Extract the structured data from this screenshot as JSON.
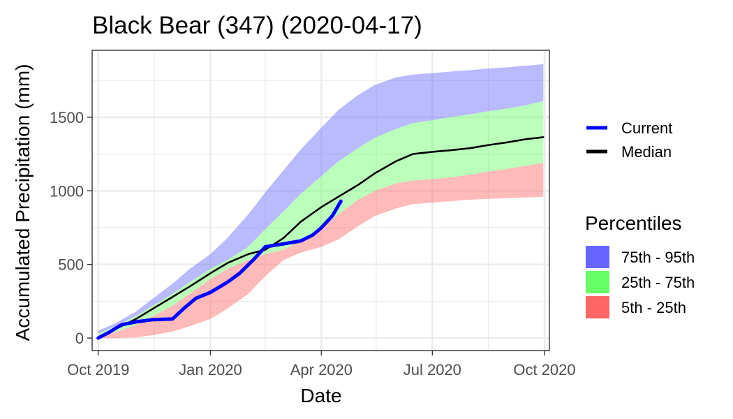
{
  "chart_data": {
    "type": "line",
    "title": "Black Bear (347) (2020-04-17)",
    "xlabel": "Date",
    "ylabel": "Accumulated Precipitation (mm)",
    "xlim": [
      "2019-09-26",
      "2020-10-05"
    ],
    "ylim": [
      -85,
      1955
    ],
    "x_ticks": [
      {
        "date": "2019-10-01",
        "label": "Oct 2019"
      },
      {
        "date": "2020-01-01",
        "label": "Jan 2020"
      },
      {
        "date": "2020-04-01",
        "label": "Apr 2020"
      },
      {
        "date": "2020-07-01",
        "label": "Jul 2020"
      },
      {
        "date": "2020-10-01",
        "label": "Oct 2020"
      }
    ],
    "y_ticks": [
      0,
      500,
      1000,
      1500
    ],
    "grid": true,
    "legend_lines_title": "",
    "legend_bands_title": "Percentiles",
    "legend_placement": "right",
    "colors": {
      "current": "#0000ff",
      "median": "#000000",
      "p75_95": "#6666ff",
      "p25_75": "#66ff66",
      "p5_25": "#ff6666"
    },
    "bands": {
      "dates": [
        "2019-10-01",
        "2019-10-15",
        "2019-11-01",
        "2019-11-15",
        "2019-12-01",
        "2019-12-15",
        "2020-01-01",
        "2020-01-15",
        "2020-02-01",
        "2020-02-15",
        "2020-03-01",
        "2020-03-15",
        "2020-04-01",
        "2020-04-15",
        "2020-05-01",
        "2020-05-15",
        "2020-06-01",
        "2020-06-15",
        "2020-07-01",
        "2020-07-15",
        "2020-08-01",
        "2020-08-15",
        "2020-09-01",
        "2020-09-15",
        "2020-09-30"
      ],
      "p5": [
        0,
        0,
        5,
        20,
        45,
        80,
        130,
        200,
        300,
        420,
        530,
        580,
        620,
        670,
        760,
        830,
        880,
        910,
        920,
        930,
        940,
        945,
        950,
        955,
        960
      ],
      "p25": [
        10,
        40,
        90,
        150,
        220,
        300,
        400,
        470,
        530,
        570,
        600,
        660,
        750,
        840,
        940,
        1000,
        1050,
        1070,
        1080,
        1090,
        1110,
        1130,
        1150,
        1170,
        1190
      ],
      "p75": [
        30,
        80,
        150,
        220,
        300,
        380,
        470,
        530,
        620,
        740,
        860,
        980,
        1100,
        1200,
        1290,
        1360,
        1420,
        1460,
        1480,
        1500,
        1520,
        1540,
        1560,
        1580,
        1610
      ],
      "p95": [
        50,
        100,
        180,
        270,
        370,
        470,
        570,
        680,
        840,
        990,
        1140,
        1280,
        1430,
        1550,
        1650,
        1720,
        1770,
        1790,
        1800,
        1810,
        1820,
        1830,
        1840,
        1850,
        1860
      ]
    },
    "series": [
      {
        "name": "Median",
        "dates": [
          "2019-10-01",
          "2019-10-15",
          "2019-11-01",
          "2019-11-15",
          "2019-12-01",
          "2019-12-15",
          "2020-01-01",
          "2020-01-15",
          "2020-02-01",
          "2020-02-15",
          "2020-03-01",
          "2020-03-15",
          "2020-04-01",
          "2020-04-15",
          "2020-05-01",
          "2020-05-15",
          "2020-06-01",
          "2020-06-15",
          "2020-07-01",
          "2020-07-15",
          "2020-08-01",
          "2020-08-15",
          "2020-09-01",
          "2020-09-15",
          "2020-09-30"
        ],
        "values": [
          0,
          60,
          130,
          200,
          280,
          350,
          440,
          510,
          570,
          600,
          680,
          790,
          890,
          960,
          1040,
          1120,
          1200,
          1250,
          1265,
          1275,
          1290,
          1310,
          1330,
          1350,
          1365
        ]
      },
      {
        "name": "Current",
        "dates": [
          "2019-10-01",
          "2019-10-10",
          "2019-10-20",
          "2019-11-01",
          "2019-11-15",
          "2019-12-01",
          "2019-12-10",
          "2019-12-20",
          "2020-01-01",
          "2020-01-15",
          "2020-01-25",
          "2020-02-05",
          "2020-02-15",
          "2020-03-01",
          "2020-03-15",
          "2020-03-25",
          "2020-04-01",
          "2020-04-10",
          "2020-04-17"
        ],
        "values": [
          0,
          40,
          90,
          110,
          125,
          130,
          200,
          270,
          310,
          380,
          440,
          530,
          620,
          640,
          660,
          700,
          750,
          830,
          930
        ]
      }
    ]
  }
}
